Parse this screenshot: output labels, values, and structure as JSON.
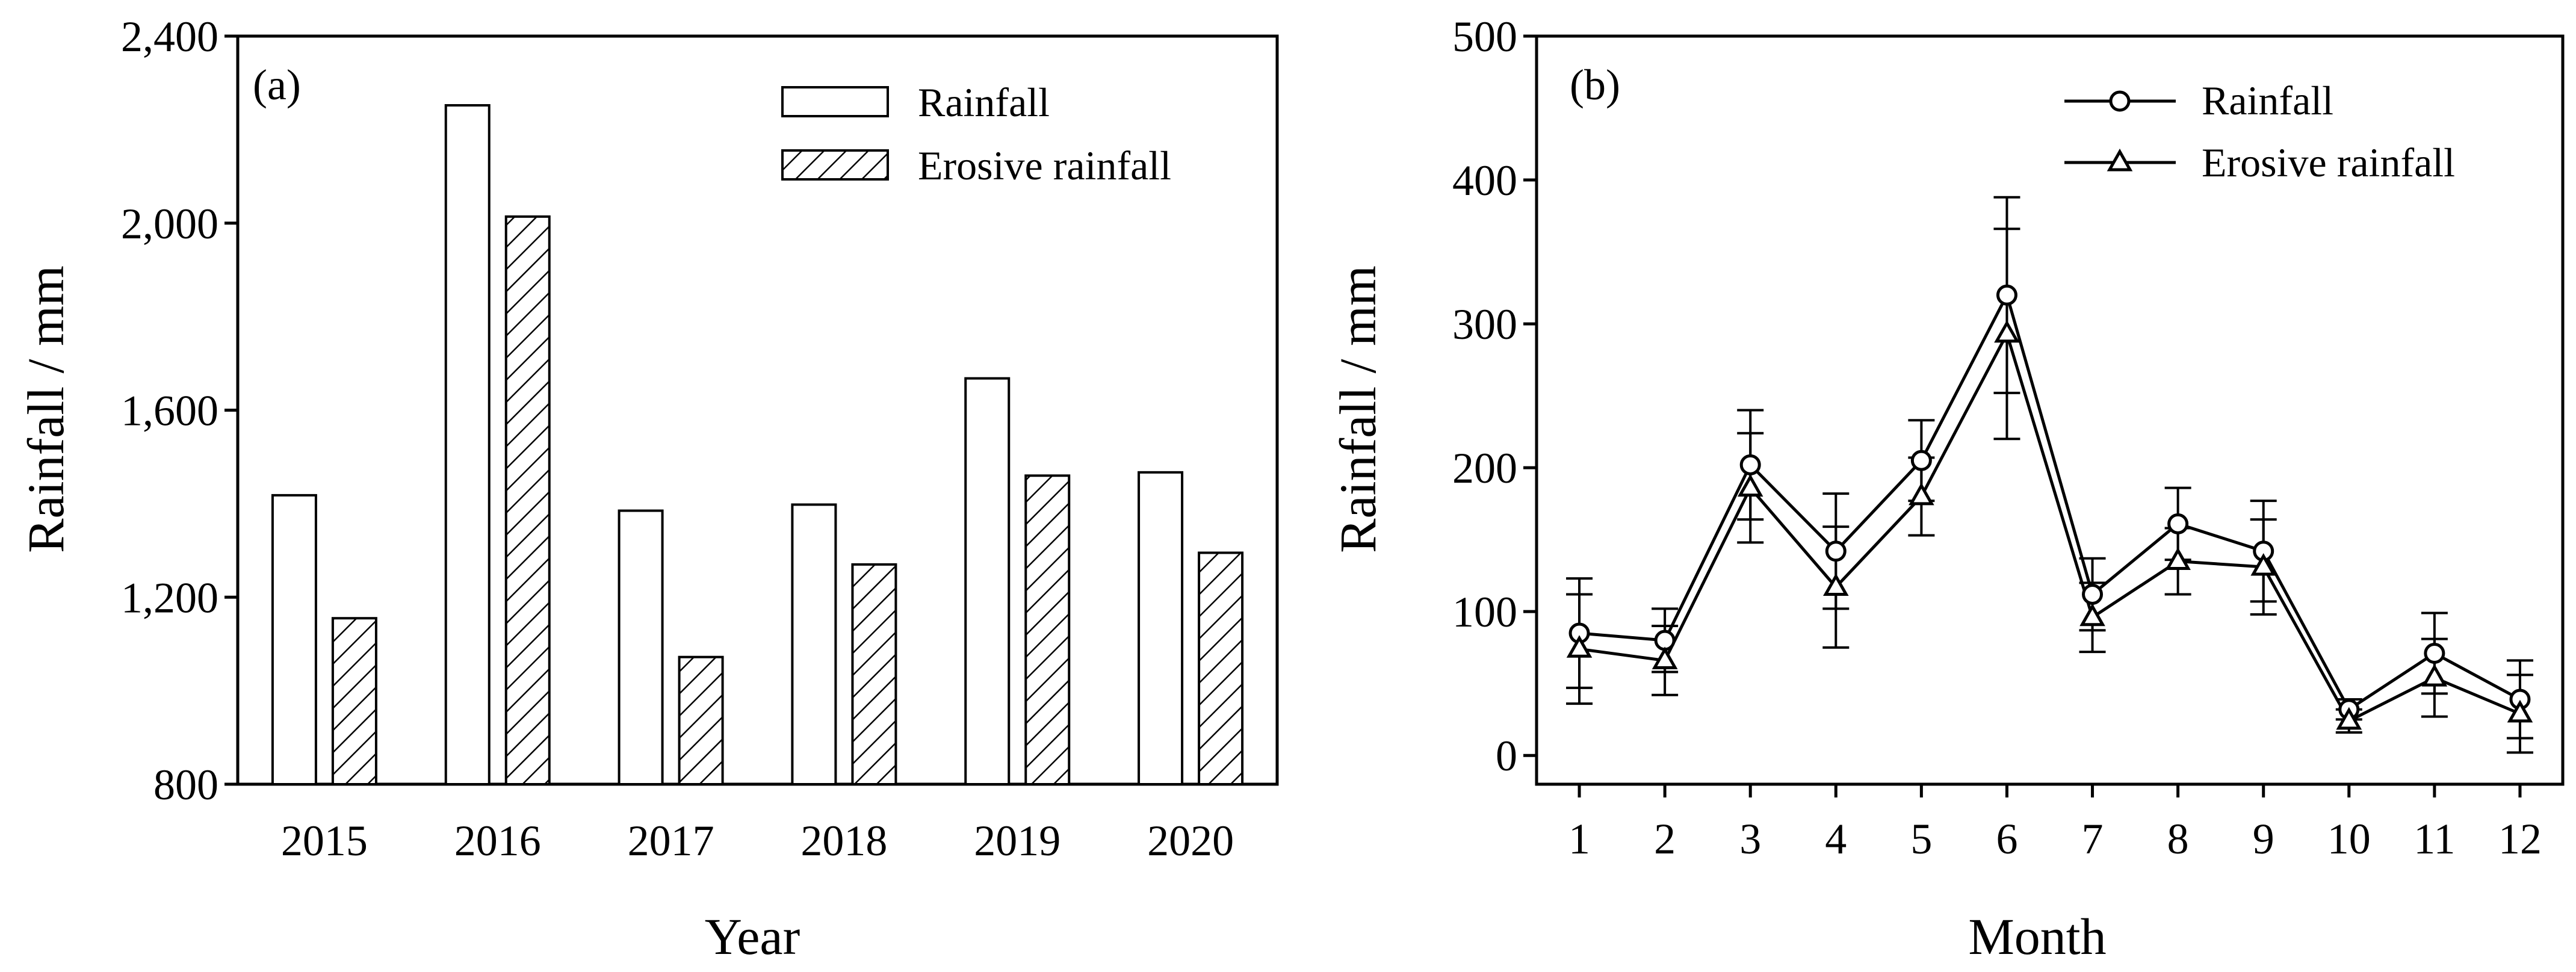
{
  "chart_data": [
    {
      "type": "bar",
      "panel_label": "(a)",
      "xlabel": "Year",
      "ylabel": "Rainfall / mm",
      "ylim": [
        800,
        2400
      ],
      "yticks": [
        800,
        1200,
        1600,
        2000,
        2400
      ],
      "ytick_labels": [
        "800",
        "1,200",
        "1,600",
        "2,000",
        "2,400"
      ],
      "categories": [
        "2015",
        "2016",
        "2017",
        "2018",
        "2019",
        "2020"
      ],
      "series": [
        {
          "name": "Rainfall",
          "values": [
            1418,
            2252,
            1385,
            1398,
            1668,
            1467
          ],
          "style": "open"
        },
        {
          "name": "Erosive rainfall",
          "values": [
            1155,
            2014,
            1072,
            1270,
            1460,
            1295
          ],
          "style": "hatched"
        }
      ],
      "legend": {
        "position": "top-right",
        "entries": [
          "Rainfall",
          "Erosive rainfall"
        ]
      }
    },
    {
      "type": "line",
      "panel_label": "(b)",
      "xlabel": "Month",
      "ylabel": "Rainfall / mm",
      "ylim": [
        -20,
        500
      ],
      "yticks": [
        0,
        100,
        200,
        300,
        400,
        500
      ],
      "ytick_labels": [
        "0",
        "100",
        "200",
        "300",
        "400",
        "500"
      ],
      "x": [
        1,
        2,
        3,
        4,
        5,
        6,
        7,
        8,
        9,
        10,
        11,
        12
      ],
      "x_labels": [
        "1",
        "2",
        "3",
        "4",
        "5",
        "6",
        "7",
        "8",
        "9",
        "10",
        "11",
        "12"
      ],
      "series": [
        {
          "name": "Rainfall",
          "marker": "circle",
          "values": [
            85,
            80,
            202,
            142,
            205,
            320,
            112,
            161,
            142,
            32,
            71,
            39
          ],
          "error": [
            38,
            22,
            38,
            40,
            28,
            68,
            25,
            25,
            35,
            7,
            28,
            27
          ]
        },
        {
          "name": "Erosive rainfall",
          "marker": "triangle",
          "values": [
            74,
            66,
            186,
            117,
            180,
            293,
            96,
            135,
            131,
            24,
            54,
            29
          ],
          "error": [
            38,
            24,
            38,
            42,
            27,
            73,
            24,
            23,
            33,
            8,
            27,
            27
          ]
        }
      ],
      "legend": {
        "position": "top-right",
        "entries": [
          "Rainfall",
          "Erosive rainfall"
        ]
      }
    }
  ]
}
